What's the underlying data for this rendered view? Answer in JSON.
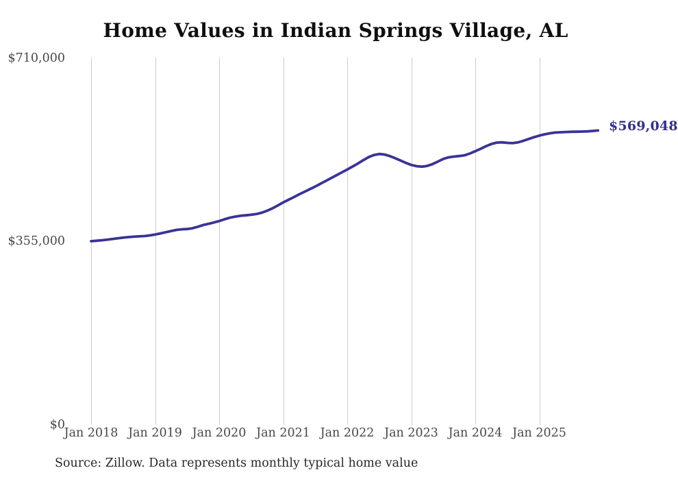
{
  "chart_data": {
    "type": "line",
    "title": "Home Values in Indian Springs Village, AL",
    "source_note": "Source: Zillow. Data represents monthly typical home value",
    "x_unit": "month",
    "x_start": "2018-01",
    "x_end": "2025-12",
    "x_tick_labels": [
      "Jan 2018",
      "Jan 2019",
      "Jan 2020",
      "Jan 2021",
      "Jan 2022",
      "Jan 2023",
      "Jan 2024",
      "Jan 2025"
    ],
    "y_tick_labels": [
      "$0",
      "$355,000",
      "$710,000"
    ],
    "ylim": [
      0,
      710000
    ],
    "y_ticks": [
      0,
      355000,
      710000
    ],
    "grid": "vertical-only",
    "legend_position": "none",
    "end_label": "$569,048",
    "final_value": 569048,
    "values": [
      355000,
      355900,
      356900,
      358100,
      359400,
      360700,
      361900,
      362900,
      363700,
      364400,
      365000,
      366300,
      368000,
      370100,
      372400,
      374800,
      376800,
      378000,
      378600,
      380000,
      383000,
      386200,
      388600,
      391200,
      394000,
      397400,
      400400,
      402600,
      404100,
      405100,
      406100,
      407600,
      410100,
      414000,
      418600,
      424100,
      430000,
      435100,
      440200,
      445600,
      450700,
      455700,
      460700,
      466100,
      471600,
      477100,
      482600,
      488100,
      493600,
      499200,
      505200,
      511600,
      517500,
      521700,
      523600,
      522500,
      519500,
      515400,
      510900,
      506400,
      502400,
      500000,
      499100,
      500600,
      504100,
      509100,
      514100,
      517100,
      518600,
      519600,
      521100,
      524600,
      529100,
      533700,
      538600,
      543000,
      545600,
      546100,
      545100,
      544500,
      546000,
      549100,
      552600,
      556100,
      559100,
      561600,
      563600,
      565100,
      565600,
      566100,
      566600,
      566700,
      567000,
      567400,
      568100,
      569048
    ]
  },
  "colors": {
    "line": "#3a3397",
    "end_label": "#31308e",
    "grid": "#cccccc"
  }
}
